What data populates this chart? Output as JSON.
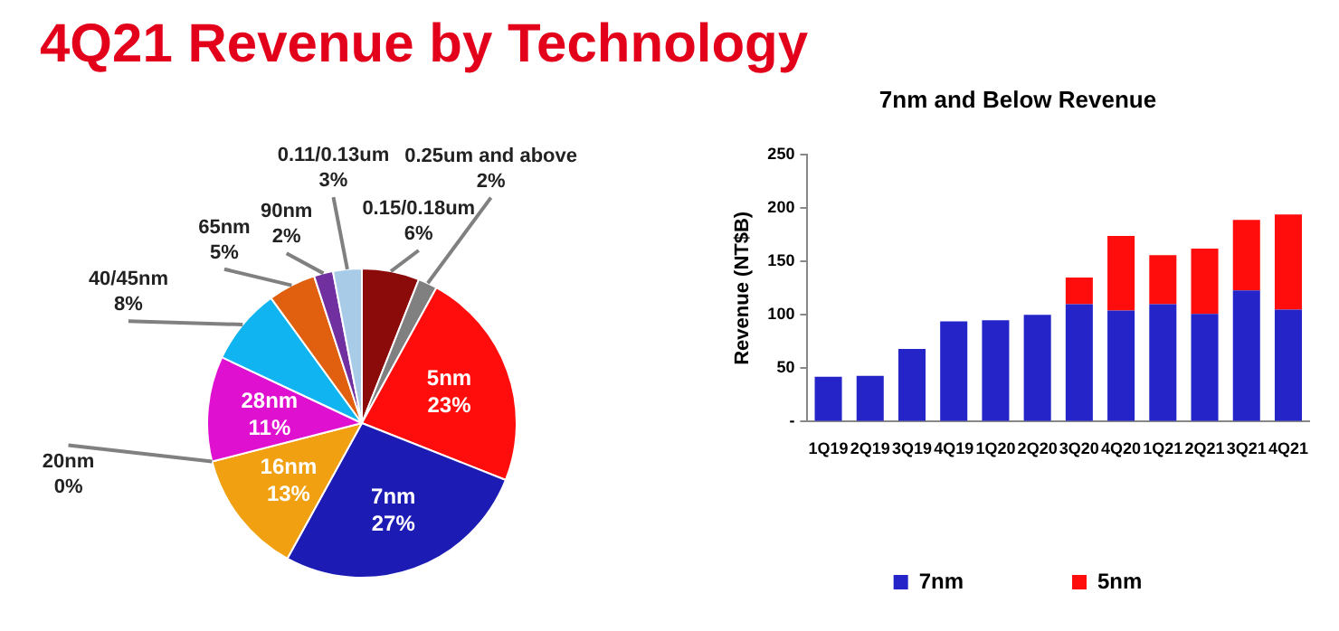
{
  "chart_data": [
    {
      "type": "pie",
      "title": "4Q21 Revenue by Technology",
      "categories": [
        "0.15/0.18um",
        "0.25um and above",
        "5nm",
        "7nm",
        "16nm",
        "20nm",
        "28nm",
        "40/45nm",
        "65nm",
        "90nm",
        "0.11/0.13um"
      ],
      "values": [
        6,
        2,
        23,
        27,
        13,
        0,
        11,
        8,
        5,
        2,
        3
      ],
      "value_labels": [
        "6%",
        "2%",
        "23%",
        "27%",
        "13%",
        "0%",
        "11%",
        "8%",
        "5%",
        "2%",
        "3%"
      ],
      "colors": [
        "#8b0a0a",
        "#808080",
        "#ff0d0d",
        "#1c1cb4",
        "#f0a010",
        "#c8a050",
        "#e010d0",
        "#10b4f0",
        "#e06010",
        "#7030a0",
        "#a8cce8"
      ]
    },
    {
      "type": "bar",
      "title": "7nm and Below Revenue",
      "ylabel": "Revenue (NT$B)",
      "categories": [
        "1Q19",
        "2Q19",
        "3Q19",
        "4Q19",
        "1Q20",
        "2Q20",
        "3Q20",
        "4Q20",
        "1Q21",
        "2Q21",
        "3Q21",
        "4Q21"
      ],
      "series": [
        {
          "name": "7nm",
          "color": "#2424c8",
          "values": [
            42,
            43,
            68,
            94,
            95,
            100,
            110,
            104,
            110,
            101,
            123,
            105
          ]
        },
        {
          "name": "5nm",
          "color": "#ff0d0d",
          "values": [
            null,
            null,
            null,
            null,
            null,
            null,
            25,
            70,
            46,
            61,
            66,
            89
          ]
        }
      ],
      "stacked": true,
      "ylim": [
        0,
        250
      ],
      "yticks": [
        {
          "value": 0,
          "label": "-"
        },
        50,
        100,
        150,
        200,
        250
      ],
      "grid": false,
      "legend": "bottom"
    }
  ]
}
